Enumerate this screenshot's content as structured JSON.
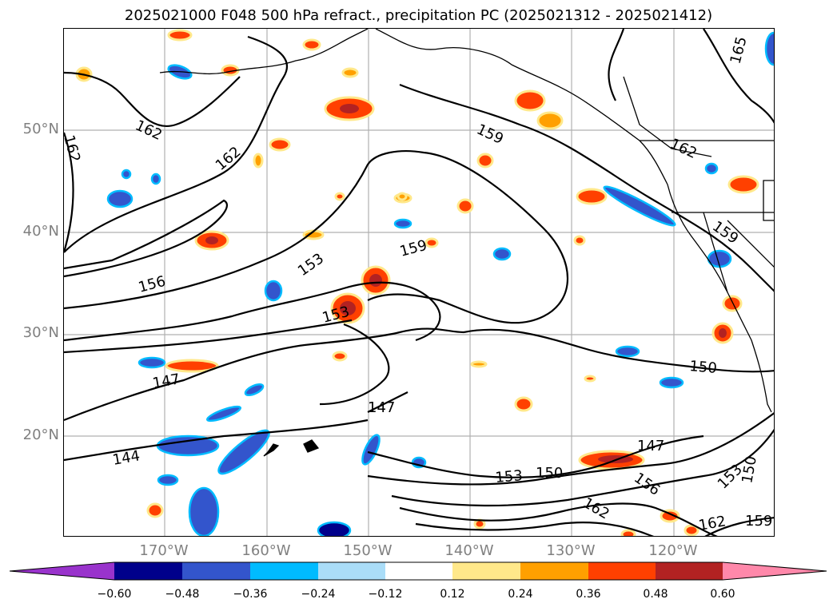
{
  "title": "2025021000 F048 500 hPa refract., precipitation PC (2025021312 - 2025021412)",
  "lat_labels": [
    "50°N",
    "40°N",
    "30°N",
    "20°N"
  ],
  "lon_labels": [
    "170°W",
    "160°W",
    "150°W",
    "140°W",
    "130°W",
    "120°W"
  ],
  "contour_labels": [
    "162",
    "162",
    "162",
    "159",
    "162",
    "159",
    "156",
    "153",
    "159",
    "153",
    "147",
    "147",
    "150",
    "144",
    "147",
    "153",
    "150",
    "156",
    "162",
    "153",
    "150",
    "162",
    "159",
    "165"
  ],
  "colorbar": {
    "ticks": [
      "−0.60",
      "−0.48",
      "−0.36",
      "−0.24",
      "−0.12",
      "0.12",
      "0.24",
      "0.36",
      "0.48",
      "0.60"
    ],
    "colors": [
      "#9933cc",
      "#00008b",
      "#3355cc",
      "#00bbff",
      "#aaddf8",
      "#ffffff",
      "#ffe88a",
      "#ffa000",
      "#ff4000",
      "#b22222",
      "#ff88aa"
    ]
  },
  "map": {
    "land_color": "#000000",
    "grid_color": "#b0b0b0",
    "contour_color": "#000000"
  }
}
